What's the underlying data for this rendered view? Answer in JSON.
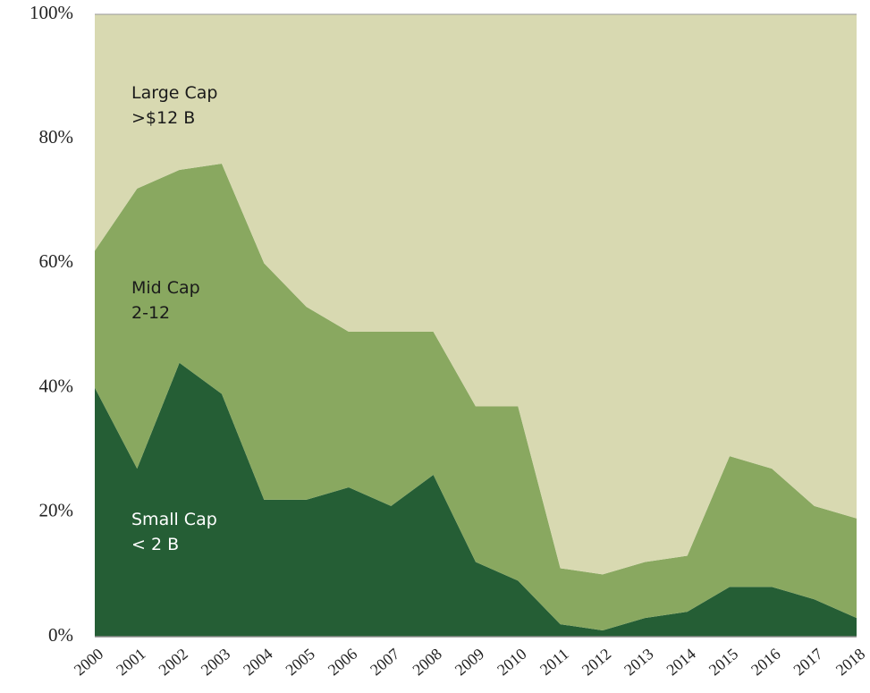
{
  "chart_data": {
    "type": "area",
    "stacked": true,
    "categories": [
      "2000",
      "2001",
      "2002",
      "2003",
      "2004",
      "2005",
      "2006",
      "2007",
      "2008",
      "2009",
      "2010",
      "2011",
      "2012",
      "2013",
      "2014",
      "2015",
      "2016",
      "2017",
      "2018"
    ],
    "series": [
      {
        "name": "Small Cap\n< 2 B",
        "color": "#255e35",
        "values": [
          40,
          27,
          44,
          39,
          22,
          22,
          24,
          21,
          26,
          12,
          9,
          2,
          1,
          3,
          4,
          8,
          8,
          6,
          3
        ]
      },
      {
        "name": "Mid Cap\n2-12",
        "color": "#89a860",
        "values": [
          22,
          45,
          31,
          37,
          38,
          31,
          25,
          28,
          23,
          25,
          28,
          9,
          9,
          9,
          9,
          21,
          19,
          15,
          16
        ]
      },
      {
        "name": "Large Cap\n>$12 B",
        "color": "#d8d9b1",
        "values": [
          38,
          28,
          25,
          24,
          40,
          47,
          51,
          51,
          51,
          63,
          63,
          89,
          90,
          88,
          87,
          71,
          73,
          79,
          81
        ]
      }
    ],
    "ylim": [
      0,
      100
    ],
    "yticks": [
      {
        "value": 0,
        "label": "0%"
      },
      {
        "value": 20,
        "label": "20%"
      },
      {
        "value": 40,
        "label": "40%"
      },
      {
        "value": 60,
        "label": "60%"
      },
      {
        "value": 80,
        "label": "80%"
      },
      {
        "value": 100,
        "label": "100%"
      }
    ]
  }
}
